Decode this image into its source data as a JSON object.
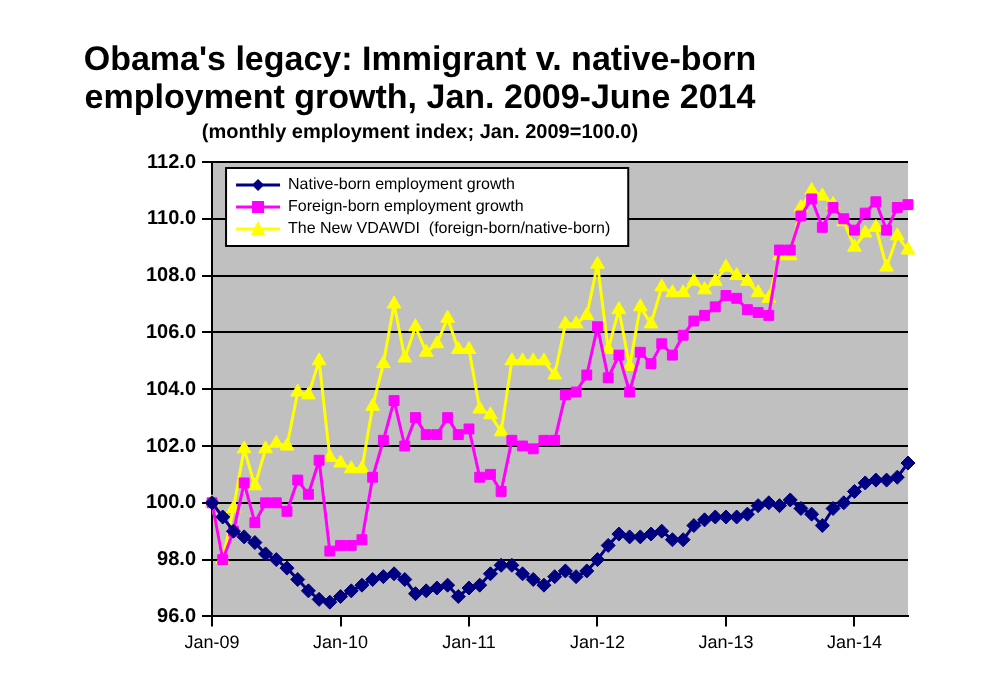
{
  "chart_data": {
    "type": "line",
    "title": "Obama's legacy: Immigrant v. native-born employment growth, Jan. 2009-June 2014",
    "subtitle": "(monthly employment index; Jan. 2009=100.0)",
    "categories": [
      "Jan-09",
      null,
      null,
      null,
      null,
      null,
      null,
      null,
      null,
      null,
      null,
      null,
      "Jan-10",
      null,
      null,
      null,
      null,
      null,
      null,
      null,
      null,
      null,
      null,
      null,
      "Jan-11",
      null,
      null,
      null,
      null,
      null,
      null,
      null,
      null,
      null,
      null,
      null,
      "Jan-12",
      null,
      null,
      null,
      null,
      null,
      null,
      null,
      null,
      null,
      null,
      null,
      "Jan-13",
      null,
      null,
      null,
      null,
      null,
      null,
      null,
      null,
      null,
      null,
      null,
      "Jan-14",
      null,
      null,
      null,
      null,
      null
    ],
    "series": [
      {
        "name": "Native-born employment growth",
        "color": "#000080",
        "marker": "diamond",
        "values": [
          100.0,
          99.5,
          99.0,
          98.8,
          98.6,
          98.2,
          98.0,
          97.7,
          97.3,
          96.9,
          96.6,
          96.5,
          96.7,
          96.9,
          97.1,
          97.3,
          97.4,
          97.5,
          97.3,
          96.8,
          96.9,
          97.0,
          97.1,
          96.7,
          97.0,
          97.1,
          97.5,
          97.8,
          97.8,
          97.5,
          97.3,
          97.1,
          97.4,
          97.6,
          97.4,
          97.6,
          98.0,
          98.5,
          98.9,
          98.8,
          98.8,
          98.9,
          99.0,
          98.7,
          98.7,
          99.2,
          99.4,
          99.5,
          99.5,
          99.5,
          99.6,
          99.9,
          100.0,
          99.9,
          100.1,
          99.8,
          99.6,
          99.2,
          99.8,
          100.0,
          100.4,
          100.7,
          100.8,
          100.8,
          100.9,
          101.4
        ]
      },
      {
        "name": "Foreign-born employment growth",
        "color": "#ff00ff",
        "marker": "square",
        "values": [
          100.0,
          98.0,
          99.0,
          100.7,
          99.3,
          100.0,
          100.0,
          99.7,
          100.8,
          100.3,
          101.5,
          98.3,
          98.5,
          98.5,
          98.7,
          100.9,
          102.2,
          103.6,
          102.0,
          103.0,
          102.4,
          102.4,
          103.0,
          102.4,
          102.6,
          100.9,
          101.0,
          100.4,
          102.2,
          102.0,
          101.9,
          102.2,
          102.2,
          103.8,
          103.9,
          104.5,
          106.2,
          104.4,
          105.2,
          103.9,
          105.3,
          104.9,
          105.6,
          105.2,
          105.9,
          106.4,
          106.6,
          106.9,
          107.3,
          107.2,
          106.8,
          106.7,
          106.6,
          108.9,
          108.9,
          110.1,
          110.7,
          109.7,
          110.4,
          110.0,
          109.6,
          110.2,
          110.6,
          109.6,
          110.4,
          110.5
        ]
      },
      {
        "name": "The New VDAWDI  (foreign-born/native-born)",
        "color": "#ffff00",
        "marker": "triangle",
        "values": [
          100.0,
          98.0,
          99.8,
          101.9,
          100.6,
          101.9,
          102.1,
          102.0,
          103.9,
          103.8,
          105.0,
          101.6,
          101.4,
          101.2,
          101.2,
          103.4,
          104.9,
          107.0,
          105.1,
          106.2,
          105.3,
          105.6,
          106.5,
          105.4,
          105.4,
          103.3,
          103.1,
          102.5,
          105.0,
          105.0,
          105.0,
          105.0,
          104.5,
          106.3,
          106.3,
          106.6,
          108.4,
          105.4,
          106.8,
          104.8,
          106.9,
          106.3,
          107.6,
          107.4,
          107.4,
          107.8,
          107.5,
          107.8,
          108.3,
          108.0,
          107.8,
          107.4,
          107.2,
          108.7,
          108.7,
          110.4,
          111.0,
          110.8,
          110.5,
          109.9,
          109.0,
          109.5,
          109.7,
          108.3,
          109.4,
          108.9
        ]
      }
    ],
    "ylim": [
      96,
      112
    ],
    "yticks": [
      {
        "value": 96,
        "label": "96.0"
      },
      {
        "value": 98,
        "label": "98.0"
      },
      {
        "value": 100,
        "label": "100.0"
      },
      {
        "value": 102,
        "label": "102.0"
      },
      {
        "value": 104,
        "label": "104.0"
      },
      {
        "value": 106,
        "label": "106.0"
      },
      {
        "value": 108,
        "label": "108.0"
      },
      {
        "value": 110,
        "label": "110.0"
      },
      {
        "value": 112,
        "label": "112.0"
      }
    ],
    "grid": "y",
    "legend": "top left"
  }
}
